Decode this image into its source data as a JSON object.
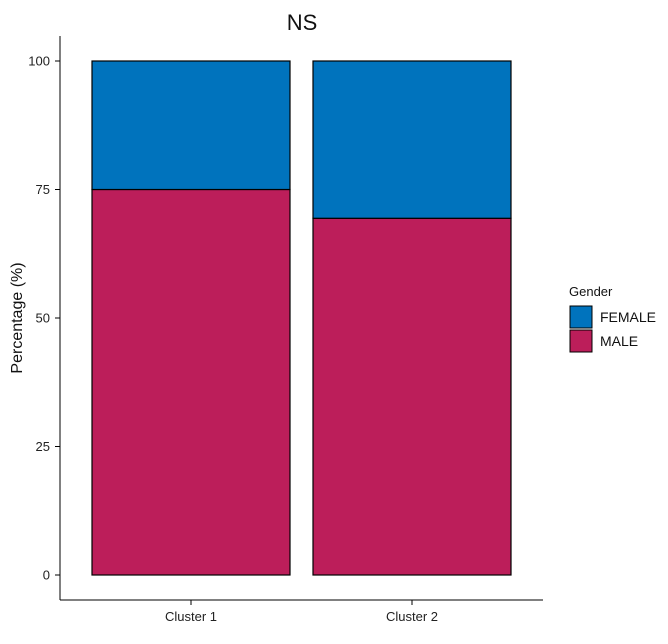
{
  "chart_data": {
    "type": "bar",
    "stacked": true,
    "title": "NS",
    "xlabel": "",
    "ylabel": "Percentage (%)",
    "ylim": [
      0,
      100
    ],
    "yticks": [
      0,
      25,
      50,
      75,
      100
    ],
    "categories": [
      "Cluster 1",
      "Cluster 2"
    ],
    "series": [
      {
        "name": "MALE",
        "values": [
          75,
          69.4
        ],
        "color": "#BC1E5A"
      },
      {
        "name": "FEMALE",
        "values": [
          25,
          30.6
        ],
        "color": "#0073BD"
      }
    ],
    "legend": {
      "title": "Gender",
      "position": "right",
      "entries": [
        "FEMALE",
        "MALE"
      ]
    },
    "grid": false
  }
}
